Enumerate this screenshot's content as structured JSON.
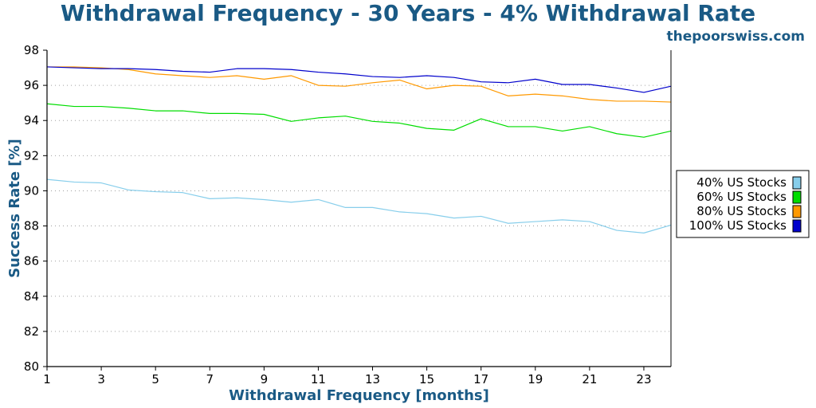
{
  "header": {
    "title": "Withdrawal Frequency - 30 Years - 4% Withdrawal Rate",
    "site": "thepoorswiss.com"
  },
  "chart_data": {
    "type": "line",
    "title": "Withdrawal Frequency - 30 Years - 4% Withdrawal Rate",
    "xlabel": "Withdrawal Frequency [months]",
    "ylabel": "Success Rate [%]",
    "xlim": [
      1,
      24
    ],
    "ylim": [
      80,
      98
    ],
    "x_ticks": [
      1,
      3,
      5,
      7,
      9,
      11,
      13,
      15,
      17,
      19,
      21,
      23
    ],
    "y_ticks": [
      80,
      82,
      84,
      86,
      88,
      90,
      92,
      94,
      96,
      98
    ],
    "grid": "horizontal-dotted",
    "legend_position": "right",
    "x": [
      1,
      2,
      3,
      4,
      5,
      6,
      7,
      8,
      9,
      10,
      11,
      12,
      13,
      14,
      15,
      16,
      17,
      18,
      19,
      20,
      21,
      22,
      23,
      24
    ],
    "series": [
      {
        "name": "40% US Stocks",
        "color": "#87ceeb",
        "values": [
          90.65,
          90.5,
          90.45,
          90.05,
          89.95,
          89.9,
          89.55,
          89.6,
          89.5,
          89.35,
          89.5,
          89.05,
          89.05,
          88.8,
          88.7,
          88.45,
          88.55,
          88.15,
          88.25,
          88.35,
          88.25,
          87.75,
          87.6,
          88.05
        ]
      },
      {
        "name": "60% US Stocks",
        "color": "#00dd00",
        "values": [
          94.95,
          94.8,
          94.8,
          94.7,
          94.55,
          94.55,
          94.4,
          94.4,
          94.35,
          93.95,
          94.15,
          94.25,
          93.95,
          93.85,
          93.55,
          93.45,
          94.1,
          93.65,
          93.65,
          93.4,
          93.65,
          93.25,
          93.05,
          93.4
        ]
      },
      {
        "name": "80% US Stocks",
        "color": "#ff9900",
        "values": [
          97.05,
          97.05,
          97.0,
          96.9,
          96.65,
          96.55,
          96.45,
          96.55,
          96.35,
          96.55,
          96.0,
          95.95,
          96.15,
          96.3,
          95.8,
          96.0,
          95.95,
          95.4,
          95.5,
          95.4,
          95.2,
          95.1,
          95.1,
          95.05
        ]
      },
      {
        "name": "100% US Stocks",
        "color": "#0000cc",
        "values": [
          97.05,
          97.0,
          96.95,
          96.95,
          96.9,
          96.8,
          96.75,
          96.95,
          96.95,
          96.9,
          96.75,
          96.65,
          96.5,
          96.45,
          96.55,
          96.45,
          96.2,
          96.15,
          96.35,
          96.05,
          96.05,
          95.85,
          95.6,
          95.95
        ]
      }
    ]
  }
}
